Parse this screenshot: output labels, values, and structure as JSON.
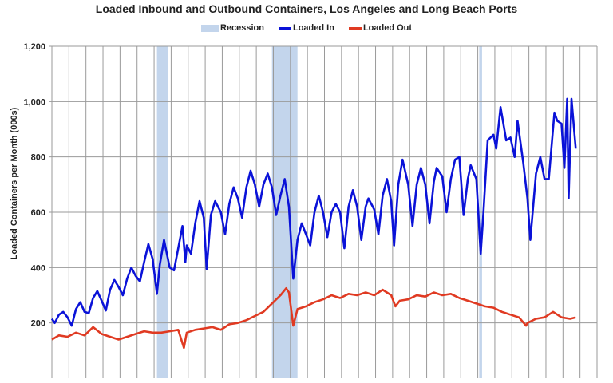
{
  "chart_data": {
    "type": "line",
    "title": "Loaded Inbound and Outbound Containers, Los Angeles and Long Beach Ports",
    "xlabel": "",
    "ylabel": "Loaded Containers per Month (000s)",
    "ylim": [
      0,
      1200
    ],
    "xlim": [
      "1995-01",
      "2027-01"
    ],
    "yticks": [
      200,
      400,
      600,
      800,
      1000,
      1200
    ],
    "ytick_labels": [
      "200",
      "400",
      "600",
      "800",
      "1,000",
      "1,200"
    ],
    "grid": true,
    "legend_position": "top",
    "legend": [
      "Recession",
      "Loaded In",
      "Loaded Out"
    ],
    "recessions": [
      {
        "start": "2001-03",
        "end": "2001-11"
      },
      {
        "start": "2007-12",
        "end": "2009-06"
      },
      {
        "start": "2020-02",
        "end": "2020-04"
      }
    ],
    "colors": {
      "recession": "#c3d5ec",
      "loaded_in": "#0a12d8",
      "loaded_out": "#e03a22",
      "grid": "#9a9a9a"
    },
    "series": [
      {
        "name": "Loaded In",
        "points": [
          [
            "1995-01",
            215
          ],
          [
            "1995-03",
            200
          ],
          [
            "1995-06",
            230
          ],
          [
            "1995-09",
            240
          ],
          [
            "1995-12",
            220
          ],
          [
            "1996-03",
            190
          ],
          [
            "1996-06",
            250
          ],
          [
            "1996-09",
            275
          ],
          [
            "1996-12",
            240
          ],
          [
            "1997-03",
            235
          ],
          [
            "1997-06",
            290
          ],
          [
            "1997-09",
            315
          ],
          [
            "1997-12",
            280
          ],
          [
            "1998-03",
            245
          ],
          [
            "1998-06",
            320
          ],
          [
            "1998-09",
            355
          ],
          [
            "1998-12",
            330
          ],
          [
            "1999-03",
            300
          ],
          [
            "1999-06",
            360
          ],
          [
            "1999-09",
            400
          ],
          [
            "1999-12",
            370
          ],
          [
            "2000-03",
            350
          ],
          [
            "2000-06",
            420
          ],
          [
            "2000-09",
            485
          ],
          [
            "2000-12",
            430
          ],
          [
            "2001-03",
            305
          ],
          [
            "2001-05",
            410
          ],
          [
            "2001-08",
            500
          ],
          [
            "2001-12",
            400
          ],
          [
            "2002-03",
            390
          ],
          [
            "2002-06",
            470
          ],
          [
            "2002-09",
            550
          ],
          [
            "2002-11",
            420
          ],
          [
            "2002-12",
            480
          ],
          [
            "2003-03",
            450
          ],
          [
            "2003-06",
            560
          ],
          [
            "2003-09",
            640
          ],
          [
            "2003-12",
            580
          ],
          [
            "2004-02",
            395
          ],
          [
            "2004-05",
            590
          ],
          [
            "2004-08",
            640
          ],
          [
            "2004-12",
            600
          ],
          [
            "2005-03",
            520
          ],
          [
            "2005-06",
            630
          ],
          [
            "2005-09",
            690
          ],
          [
            "2005-12",
            650
          ],
          [
            "2006-03",
            580
          ],
          [
            "2006-06",
            690
          ],
          [
            "2006-09",
            750
          ],
          [
            "2006-12",
            700
          ],
          [
            "2007-03",
            620
          ],
          [
            "2007-06",
            700
          ],
          [
            "2007-09",
            740
          ],
          [
            "2007-12",
            690
          ],
          [
            "2008-03",
            590
          ],
          [
            "2008-06",
            660
          ],
          [
            "2008-09",
            720
          ],
          [
            "2008-12",
            620
          ],
          [
            "2009-03",
            360
          ],
          [
            "2009-06",
            500
          ],
          [
            "2009-09",
            560
          ],
          [
            "2009-12",
            520
          ],
          [
            "2010-03",
            480
          ],
          [
            "2010-06",
            600
          ],
          [
            "2010-09",
            660
          ],
          [
            "2010-12",
            600
          ],
          [
            "2011-03",
            510
          ],
          [
            "2011-06",
            600
          ],
          [
            "2011-09",
            630
          ],
          [
            "2011-12",
            600
          ],
          [
            "2012-03",
            470
          ],
          [
            "2012-06",
            620
          ],
          [
            "2012-09",
            680
          ],
          [
            "2012-12",
            620
          ],
          [
            "2013-03",
            500
          ],
          [
            "2013-06",
            620
          ],
          [
            "2013-08",
            650
          ],
          [
            "2013-12",
            610
          ],
          [
            "2014-03",
            520
          ],
          [
            "2014-06",
            660
          ],
          [
            "2014-09",
            720
          ],
          [
            "2014-12",
            640
          ],
          [
            "2015-02",
            480
          ],
          [
            "2015-05",
            700
          ],
          [
            "2015-08",
            790
          ],
          [
            "2015-12",
            700
          ],
          [
            "2016-03",
            550
          ],
          [
            "2016-06",
            700
          ],
          [
            "2016-09",
            760
          ],
          [
            "2016-12",
            700
          ],
          [
            "2017-03",
            560
          ],
          [
            "2017-06",
            710
          ],
          [
            "2017-08",
            760
          ],
          [
            "2017-12",
            730
          ],
          [
            "2018-03",
            600
          ],
          [
            "2018-06",
            720
          ],
          [
            "2018-09",
            790
          ],
          [
            "2018-12",
            800
          ],
          [
            "2019-03",
            590
          ],
          [
            "2019-06",
            720
          ],
          [
            "2019-08",
            770
          ],
          [
            "2019-12",
            720
          ],
          [
            "2020-03",
            450
          ],
          [
            "2020-05",
            600
          ],
          [
            "2020-08",
            860
          ],
          [
            "2020-12",
            880
          ],
          [
            "2021-02",
            830
          ],
          [
            "2021-05",
            980
          ],
          [
            "2021-09",
            860
          ],
          [
            "2021-12",
            870
          ],
          [
            "2022-03",
            800
          ],
          [
            "2022-05",
            930
          ],
          [
            "2022-09",
            780
          ],
          [
            "2022-12",
            650
          ],
          [
            "2023-02",
            500
          ],
          [
            "2023-06",
            740
          ],
          [
            "2023-09",
            800
          ],
          [
            "2023-12",
            720
          ],
          [
            "2024-03",
            720
          ],
          [
            "2024-07",
            960
          ],
          [
            "2024-09",
            930
          ],
          [
            "2024-12",
            920
          ],
          [
            "2025-02",
            760
          ],
          [
            "2025-04",
            1010
          ],
          [
            "2025-05",
            650
          ],
          [
            "2025-07",
            1010
          ],
          [
            "2025-10",
            830
          ]
        ]
      },
      {
        "name": "Loaded Out",
        "points": [
          [
            "1995-01",
            140
          ],
          [
            "1995-06",
            155
          ],
          [
            "1995-12",
            150
          ],
          [
            "1996-06",
            165
          ],
          [
            "1996-12",
            155
          ],
          [
            "1997-06",
            185
          ],
          [
            "1997-12",
            160
          ],
          [
            "1998-06",
            150
          ],
          [
            "1998-12",
            140
          ],
          [
            "1999-06",
            150
          ],
          [
            "1999-12",
            160
          ],
          [
            "2000-06",
            170
          ],
          [
            "2000-12",
            165
          ],
          [
            "2001-06",
            165
          ],
          [
            "2001-12",
            170
          ],
          [
            "2002-06",
            175
          ],
          [
            "2002-10",
            110
          ],
          [
            "2002-12",
            165
          ],
          [
            "2003-06",
            175
          ],
          [
            "2003-12",
            180
          ],
          [
            "2004-06",
            185
          ],
          [
            "2004-12",
            175
          ],
          [
            "2005-06",
            195
          ],
          [
            "2005-12",
            200
          ],
          [
            "2006-06",
            210
          ],
          [
            "2006-12",
            225
          ],
          [
            "2007-06",
            240
          ],
          [
            "2007-12",
            270
          ],
          [
            "2008-06",
            300
          ],
          [
            "2008-10",
            325
          ],
          [
            "2008-12",
            310
          ],
          [
            "2009-03",
            190
          ],
          [
            "2009-06",
            250
          ],
          [
            "2009-12",
            260
          ],
          [
            "2010-06",
            275
          ],
          [
            "2010-12",
            285
          ],
          [
            "2011-06",
            300
          ],
          [
            "2011-12",
            290
          ],
          [
            "2012-06",
            305
          ],
          [
            "2012-12",
            300
          ],
          [
            "2013-06",
            310
          ],
          [
            "2013-12",
            300
          ],
          [
            "2014-06",
            320
          ],
          [
            "2014-12",
            300
          ],
          [
            "2015-03",
            260
          ],
          [
            "2015-06",
            280
          ],
          [
            "2015-12",
            285
          ],
          [
            "2016-06",
            300
          ],
          [
            "2016-12",
            295
          ],
          [
            "2017-06",
            310
          ],
          [
            "2017-12",
            300
          ],
          [
            "2018-06",
            305
          ],
          [
            "2018-12",
            290
          ],
          [
            "2019-06",
            280
          ],
          [
            "2019-12",
            270
          ],
          [
            "2020-06",
            260
          ],
          [
            "2020-12",
            255
          ],
          [
            "2021-06",
            240
          ],
          [
            "2021-12",
            230
          ],
          [
            "2022-06",
            220
          ],
          [
            "2022-11",
            190
          ],
          [
            "2022-12",
            200
          ],
          [
            "2023-06",
            215
          ],
          [
            "2023-12",
            220
          ],
          [
            "2024-06",
            240
          ],
          [
            "2024-12",
            220
          ],
          [
            "2025-06",
            215
          ],
          [
            "2025-10",
            220
          ]
        ]
      }
    ]
  }
}
